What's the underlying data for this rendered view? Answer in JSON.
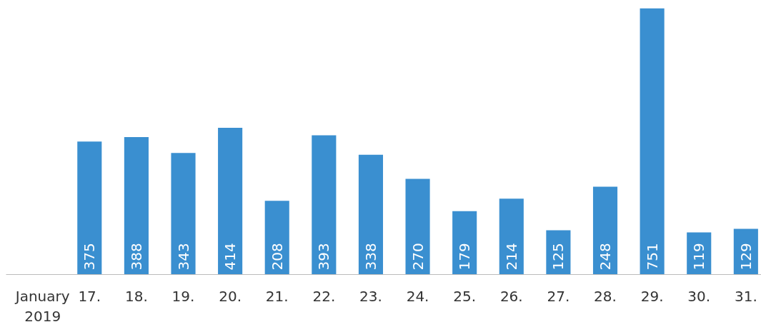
{
  "chart_data": {
    "type": "bar",
    "categories": [
      "January\n2019",
      "17.",
      "18.",
      "19.",
      "20.",
      "21.",
      "22.",
      "23.",
      "24.",
      "25.",
      "26.",
      "27.",
      "28.",
      "29.",
      "30.",
      "31."
    ],
    "values": [
      null,
      375,
      388,
      343,
      414,
      208,
      393,
      338,
      270,
      179,
      214,
      125,
      248,
      751,
      119,
      129
    ],
    "color": "#3a8fd0",
    "data_labels": true,
    "tick_labels": "x",
    "grid": false
  }
}
